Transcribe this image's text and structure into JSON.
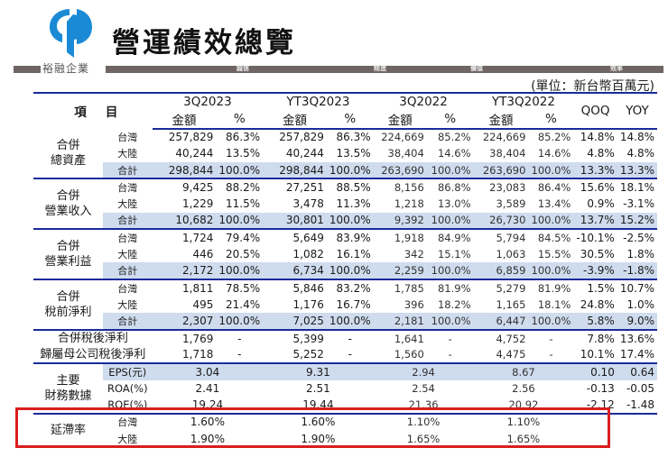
{
  "header": {
    "title": "營運績效總覽",
    "brand": "裕融企業",
    "banner_words": [
      "誠信",
      "精進",
      "價值",
      "效率"
    ],
    "logo_color": "#1a8ad6",
    "banner_color": "#6f6564"
  },
  "unit_note": "(單位：新台幣百萬元)",
  "table": {
    "item_header": [
      "項",
      "目"
    ],
    "periods": [
      "3Q2023",
      "YT3Q2023",
      "3Q2022",
      "YT3Q2022"
    ],
    "sub_headers": [
      "金額",
      "%"
    ],
    "qoq_label": "QOQ",
    "yoy_label": "YOY",
    "groups": [
      {
        "category": [
          "合併",
          "總資產"
        ],
        "rows": [
          {
            "label": "台灣",
            "values": [
              "257,829",
              "86.3%",
              "257,829",
              "86.3%",
              "224,669",
              "85.2%",
              "224,669",
              "85.2%",
              "14.8%",
              "14.8%"
            ]
          },
          {
            "label": "大陸",
            "values": [
              "40,244",
              "13.5%",
              "40,244",
              "13.5%",
              "38,404",
              "14.6%",
              "38,404",
              "14.6%",
              "4.8%",
              "4.8%"
            ]
          },
          {
            "label": "合計",
            "values": [
              "298,844",
              "100.0%",
              "298,844",
              "100.0%",
              "263,690",
              "100.0%",
              "263,690",
              "100.0%",
              "13.3%",
              "13.3%"
            ]
          }
        ]
      },
      {
        "category": [
          "合併",
          "營業收入"
        ],
        "rows": [
          {
            "label": "台灣",
            "values": [
              "9,425",
              "88.2%",
              "27,251",
              "88.5%",
              "8,156",
              "86.8%",
              "23,083",
              "86.4%",
              "15.6%",
              "18.1%"
            ]
          },
          {
            "label": "大陸",
            "values": [
              "1,229",
              "11.5%",
              "3,478",
              "11.3%",
              "1,218",
              "13.0%",
              "3,589",
              "13.4%",
              "0.9%",
              "-3.1%"
            ]
          },
          {
            "label": "合計",
            "values": [
              "10,682",
              "100.0%",
              "30,801",
              "100.0%",
              "9,392",
              "100.0%",
              "26,730",
              "100.0%",
              "13.7%",
              "15.2%"
            ]
          }
        ]
      },
      {
        "category": [
          "合併",
          "營業利益"
        ],
        "rows": [
          {
            "label": "台灣",
            "values": [
              "1,724",
              "79.4%",
              "5,649",
              "83.9%",
              "1,918",
              "84.9%",
              "5,794",
              "84.5%",
              "-10.1%",
              "-2.5%"
            ]
          },
          {
            "label": "大陸",
            "values": [
              "446",
              "20.5%",
              "1,082",
              "16.1%",
              "342",
              "15.1%",
              "1,063",
              "15.5%",
              "30.5%",
              "1.8%"
            ]
          },
          {
            "label": "合計",
            "values": [
              "2,172",
              "100.0%",
              "6,734",
              "100.0%",
              "2,259",
              "100.0%",
              "6,859",
              "100.0%",
              "-3.9%",
              "-1.8%"
            ]
          }
        ]
      },
      {
        "category": [
          "合併",
          "稅前淨利"
        ],
        "rows": [
          {
            "label": "台灣",
            "values": [
              "1,811",
              "78.5%",
              "5,846",
              "83.2%",
              "1,785",
              "81.9%",
              "5,279",
              "81.9%",
              "1.5%",
              "10.7%"
            ]
          },
          {
            "label": "大陸",
            "values": [
              "495",
              "21.4%",
              "1,176",
              "16.7%",
              "396",
              "18.2%",
              "1,165",
              "18.1%",
              "24.8%",
              "1.0%"
            ]
          },
          {
            "label": "合計",
            "values": [
              "2,307",
              "100.0%",
              "7,025",
              "100.0%",
              "2,181",
              "100.0%",
              "6,447",
              "100.0%",
              "5.8%",
              "9.0%"
            ]
          }
        ]
      }
    ],
    "net_rows": [
      {
        "label": "合併稅後淨利",
        "values": [
          "1,769",
          "-",
          "5,399",
          "-",
          "1,641",
          "-",
          "4,752",
          "-",
          "7.8%",
          "13.6%"
        ]
      },
      {
        "label": "歸屬母公司稅後淨利",
        "values": [
          "1,718",
          "-",
          "5,252",
          "-",
          "1,560",
          "-",
          "4,475",
          "-",
          "10.1%",
          "17.4%"
        ]
      }
    ],
    "key_financials": {
      "category": [
        "主要",
        "財務數據"
      ],
      "rows": [
        {
          "label": "EPS(元)",
          "values": [
            "3.04",
            "9.31",
            "2.94",
            "8.67",
            "0.10",
            "0.64"
          ]
        },
        {
          "label": "ROA(%)",
          "values": [
            "2.41",
            "2.51",
            "2.54",
            "2.56",
            "-0.13",
            "-0.05"
          ]
        },
        {
          "label": "ROE(%)",
          "values": [
            "19.24",
            "19.44",
            "21.36",
            "20.92",
            "-2.12",
            "-1.48"
          ]
        }
      ]
    },
    "delinquency": {
      "category": "延滯率",
      "rows": [
        {
          "label": "台灣",
          "values": [
            "1.60%",
            "1.60%",
            "1.10%",
            "1.10%"
          ]
        },
        {
          "label": "大陸",
          "values": [
            "1.90%",
            "1.90%",
            "1.65%",
            "1.65%"
          ]
        }
      ]
    }
  },
  "highlight": {
    "color": "#d81e1e",
    "target": "延滯率"
  }
}
